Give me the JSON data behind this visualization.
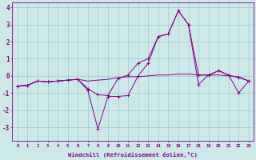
{
  "xlabel": "Windchill (Refroidissement éolien,°C)",
  "bg_color": "#cce8e8",
  "line_color": "#880088",
  "grid_color": "#99cccc",
  "x_hours": [
    0,
    1,
    2,
    3,
    4,
    5,
    6,
    7,
    8,
    9,
    10,
    11,
    12,
    13,
    14,
    15,
    16,
    17,
    18,
    19,
    20,
    21,
    22,
    23
  ],
  "series1": [
    -0.6,
    -0.55,
    -0.3,
    -0.35,
    -0.3,
    -0.25,
    -0.2,
    -0.75,
    -1.1,
    -1.15,
    -0.15,
    0.05,
    0.75,
    1.0,
    2.3,
    2.45,
    3.8,
    3.0,
    0.05,
    0.05,
    0.3,
    0.05,
    -0.1,
    -0.3
  ],
  "series2": [
    -0.6,
    -0.55,
    -0.3,
    -0.35,
    -0.3,
    -0.25,
    -0.2,
    -0.85,
    -3.1,
    -1.2,
    -1.2,
    -1.15,
    0.0,
    0.75,
    2.3,
    2.45,
    3.8,
    3.0,
    -0.5,
    0.05,
    0.3,
    0.05,
    -1.0,
    -0.3
  ],
  "series3": [
    -0.6,
    -0.55,
    -0.3,
    -0.35,
    -0.3,
    -0.25,
    -0.2,
    -0.3,
    -0.25,
    -0.2,
    -0.1,
    -0.05,
    -0.05,
    0.0,
    0.05,
    0.05,
    0.1,
    0.1,
    0.05,
    0.05,
    0.05,
    0.0,
    -0.05,
    -0.3
  ],
  "ylim": [
    -3.8,
    4.3
  ],
  "yticks": [
    -3,
    -2,
    -1,
    0,
    1,
    2,
    3,
    4
  ]
}
